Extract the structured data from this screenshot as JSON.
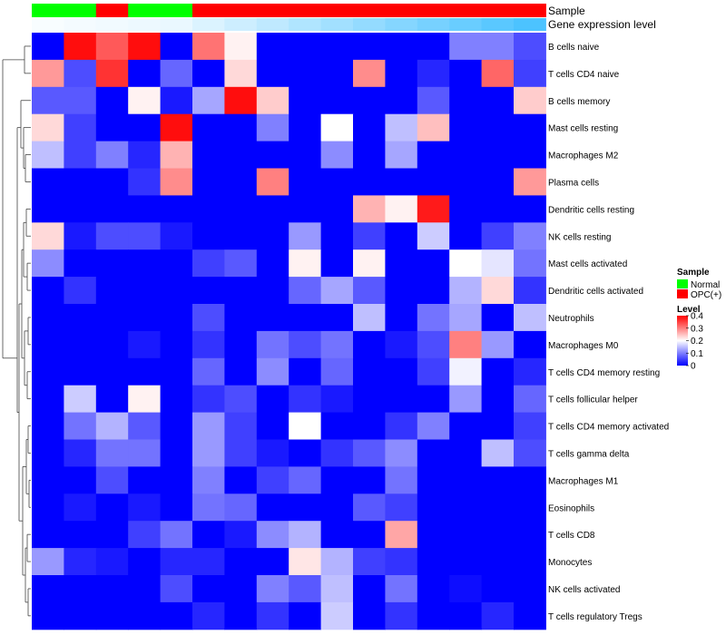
{
  "chart_data": {
    "type": "heatmap",
    "annotation_tracks": [
      "Sample",
      "Gene expression level"
    ],
    "samples": [
      "Normal",
      "Normal",
      "OPC(+)",
      "Normal",
      "Normal",
      "OPC(+)",
      "OPC(+)",
      "OPC(+)",
      "OPC(+)",
      "OPC(+)",
      "OPC(+)",
      "OPC(+)",
      "OPC(+)",
      "OPC(+)",
      "OPC(+)",
      "OPC(+)"
    ],
    "expression_level": [
      0.02,
      0.03,
      0.04,
      0.05,
      0.06,
      0.1,
      0.14,
      0.18,
      0.22,
      0.26,
      0.3,
      0.34,
      0.38,
      0.42,
      0.46,
      0.5
    ],
    "rows": [
      "B cells naive",
      "T cells CD4 naive",
      "B cells memory",
      "Mast cells resting",
      "Macrophages M2",
      "Plasma cells",
      "Dendritic cells resting",
      "NK cells resting",
      "Mast cells activated",
      "Dendritic cells activated",
      "Neutrophils",
      "Macrophages M0",
      "T cells CD4 memory resting",
      "T cells follicular helper",
      "T cells CD4 memory activated",
      "T cells gamma delta",
      "Macrophages M1",
      "Eosinophils",
      "T cells CD8",
      "Monocytes",
      "NK cells activated",
      "T cells regulatory  Tregs"
    ],
    "values": [
      [
        0.0,
        0.39,
        0.33,
        0.39,
        0.0,
        0.31,
        0.21,
        0.0,
        0.0,
        0.0,
        0.0,
        0.0,
        0.0,
        0.1,
        0.1,
        0.06
      ],
      [
        0.28,
        0.06,
        0.36,
        0.0,
        0.08,
        0.0,
        0.23,
        0.0,
        0.0,
        0.0,
        0.29,
        0.0,
        0.03,
        0.0,
        0.32,
        0.05
      ],
      [
        0.07,
        0.07,
        0.0,
        0.21,
        0.02,
        0.13,
        0.39,
        0.24,
        0.0,
        0.0,
        0.0,
        0.0,
        0.07,
        0.0,
        0.0,
        0.24
      ],
      [
        0.23,
        0.05,
        0.0,
        0.0,
        0.39,
        0.0,
        0.0,
        0.1,
        0.0,
        0.2,
        0.0,
        0.15,
        0.25,
        0.0,
        0.0,
        0.0
      ],
      [
        0.15,
        0.05,
        0.1,
        0.03,
        0.26,
        0.0,
        0.0,
        0.0,
        0.0,
        0.11,
        0.0,
        0.13,
        0.0,
        0.0,
        0.0,
        0.0
      ],
      [
        0.0,
        0.0,
        0.0,
        0.04,
        0.29,
        0.0,
        0.0,
        0.3,
        0.0,
        0.0,
        0.0,
        0.0,
        0.0,
        0.0,
        0.0,
        0.28
      ],
      [
        0.0,
        0.0,
        0.0,
        0.0,
        0.0,
        0.0,
        0.0,
        0.0,
        0.0,
        0.0,
        0.26,
        0.21,
        0.38,
        0.0,
        0.0,
        0.0
      ],
      [
        0.23,
        0.02,
        0.06,
        0.06,
        0.02,
        0.0,
        0.0,
        0.0,
        0.12,
        0.0,
        0.05,
        0.0,
        0.16,
        0.0,
        0.05,
        0.1
      ],
      [
        0.11,
        0.0,
        0.0,
        0.0,
        0.0,
        0.05,
        0.07,
        0.0,
        0.21,
        0.0,
        0.21,
        0.0,
        0.0,
        0.2,
        0.18,
        0.09
      ],
      [
        0.0,
        0.04,
        0.0,
        0.0,
        0.0,
        0.0,
        0.0,
        0.0,
        0.08,
        0.13,
        0.07,
        0.0,
        0.0,
        0.14,
        0.23,
        0.04
      ],
      [
        0.0,
        0.0,
        0.0,
        0.0,
        0.0,
        0.06,
        0.0,
        0.0,
        0.0,
        0.0,
        0.15,
        0.0,
        0.09,
        0.13,
        0.0,
        0.15
      ],
      [
        0.0,
        0.0,
        0.0,
        0.02,
        0.0,
        0.04,
        0.0,
        0.09,
        0.06,
        0.09,
        0.0,
        0.02,
        0.06,
        0.3,
        0.12,
        0.0
      ],
      [
        0.0,
        0.0,
        0.0,
        0.0,
        0.0,
        0.08,
        0.0,
        0.11,
        0.0,
        0.08,
        0.0,
        0.0,
        0.05,
        0.19,
        0.0,
        0.03
      ],
      [
        0.0,
        0.16,
        0.0,
        0.21,
        0.0,
        0.04,
        0.06,
        0.0,
        0.04,
        0.02,
        0.0,
        0.0,
        0.0,
        0.12,
        0.0,
        0.08
      ],
      [
        0.0,
        0.09,
        0.14,
        0.07,
        0.0,
        0.12,
        0.05,
        0.0,
        0.2,
        0.0,
        0.0,
        0.04,
        0.1,
        0.0,
        0.0,
        0.05
      ],
      [
        0.0,
        0.03,
        0.09,
        0.09,
        0.0,
        0.12,
        0.05,
        0.02,
        0.0,
        0.04,
        0.07,
        0.11,
        0.0,
        0.0,
        0.15,
        0.06
      ],
      [
        0.0,
        0.0,
        0.06,
        0.0,
        0.0,
        0.1,
        0.0,
        0.05,
        0.08,
        0.0,
        0.0,
        0.09,
        0.0,
        0.0,
        0.0,
        0.0
      ],
      [
        0.0,
        0.02,
        0.0,
        0.02,
        0.0,
        0.09,
        0.08,
        0.0,
        0.0,
        0.0,
        0.07,
        0.05,
        0.0,
        0.0,
        0.0,
        0.0
      ],
      [
        0.0,
        0.0,
        0.0,
        0.05,
        0.09,
        0.0,
        0.02,
        0.11,
        0.14,
        0.0,
        0.0,
        0.27,
        0.0,
        0.0,
        0.0,
        0.0
      ],
      [
        0.12,
        0.03,
        0.02,
        0.0,
        0.03,
        0.03,
        0.0,
        0.0,
        0.22,
        0.14,
        0.05,
        0.04,
        0.0,
        0.0,
        0.0,
        0.0
      ],
      [
        0.0,
        0.0,
        0.0,
        0.0,
        0.06,
        0.0,
        0.0,
        0.1,
        0.07,
        0.15,
        0.0,
        0.09,
        0.0,
        0.01,
        0.0,
        0.0
      ],
      [
        0.0,
        0.0,
        0.0,
        0.0,
        0.0,
        0.03,
        0.0,
        0.04,
        0.0,
        0.16,
        0.0,
        0.04,
        0.0,
        0.0,
        0.03,
        0.0
      ]
    ],
    "color_scale": {
      "low": "#0000ff",
      "mid": "#ffffff",
      "high": "#ff0000",
      "domain": [
        0,
        0.2,
        0.4
      ]
    },
    "legend": {
      "sample_title": "Sample",
      "sample_items": [
        {
          "label": "Normal",
          "color": "#00ff00"
        },
        {
          "label": "OPC(+)",
          "color": "#ff0000"
        }
      ],
      "level_title": "Level",
      "level_ticks": [
        "0.4",
        "0.3",
        "0.2",
        "0.1",
        "0"
      ],
      "placement": "right"
    },
    "gene_track_colors": {
      "low": "#ffffff",
      "high": "#4cc3ff"
    }
  }
}
